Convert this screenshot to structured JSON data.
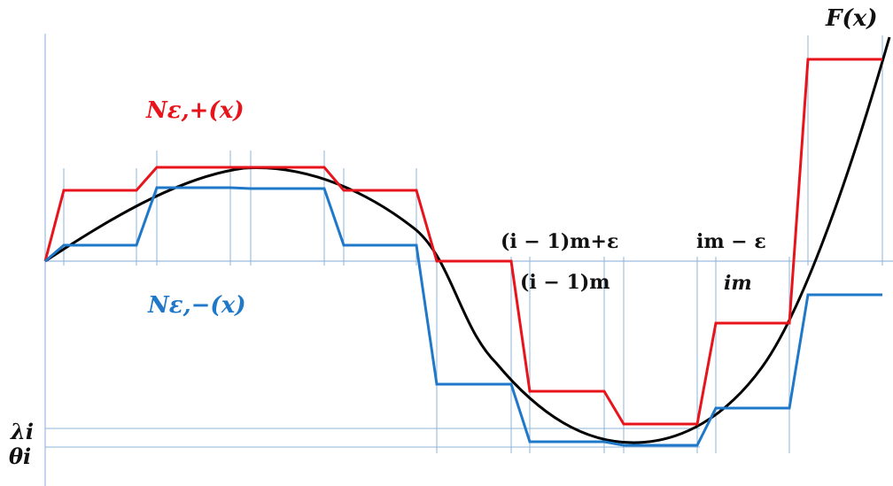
{
  "labels": {
    "upper_envelope": "Nε,+(x)",
    "lower_envelope": "Nε,−(x)",
    "function": "F(x)",
    "tick_i_minus_1_m_plus_eps": "(i − 1)m+ε",
    "tick_i_minus_1_m": "(i − 1)m",
    "tick_im_minus_eps": "im − ε",
    "tick_im": "im",
    "lambda_i": "λi",
    "theta_i": "θi"
  },
  "colors": {
    "upper": "#e8141c",
    "lower": "#1f78c8",
    "function": "#000000",
    "grid": "#8fb4d9",
    "axis": "#9bbce0"
  }
}
